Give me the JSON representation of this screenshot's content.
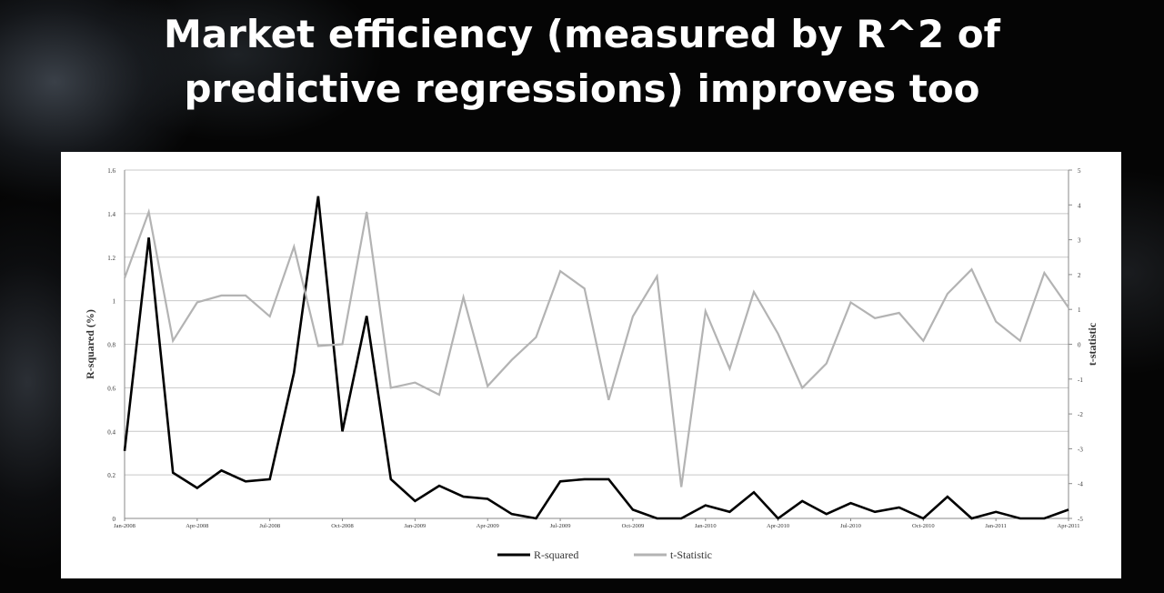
{
  "slide": {
    "title_line1": "Market efficiency (measured by R^2 of",
    "title_line2": "predictive regressions) improves too"
  },
  "chart_data": {
    "type": "line",
    "xlabel": "",
    "ylabel": "R-squared (%)",
    "y2label": "t-statistic",
    "ylim": [
      0,
      1.6
    ],
    "y2lim": [
      -5,
      5
    ],
    "y_ticks": [
      "0",
      "0.2",
      "0.4",
      "0.6",
      "0.8",
      "1",
      "1.2",
      "1.4",
      "1.6"
    ],
    "y2_ticks": [
      "-5",
      "-4",
      "-3",
      "-2",
      "-1",
      "0",
      "1",
      "2",
      "3",
      "4",
      "5"
    ],
    "x_tick_labels": [
      "Jan-2008",
      "Apr-2008",
      "Jul-2008",
      "Oct-2008",
      "Jan-2009",
      "Apr-2009",
      "Jul-2009",
      "Oct-2009",
      "Jan-2010",
      "Apr-2010",
      "Jul-2010",
      "Oct-2010",
      "Jan-2011",
      "Apr-2011"
    ],
    "x": [
      "Jan-2008",
      "Feb-2008",
      "Mar-2008",
      "Apr-2008",
      "May-2008",
      "Jun-2008",
      "Jul-2008",
      "Aug-2008",
      "Sep-2008",
      "Oct-2008",
      "Nov-2008",
      "Dec-2008",
      "Jan-2009",
      "Feb-2009",
      "Mar-2009",
      "Apr-2009",
      "May-2009",
      "Jun-2009",
      "Jul-2009",
      "Aug-2009",
      "Sep-2009",
      "Oct-2009",
      "Nov-2009",
      "Dec-2009",
      "Jan-2010",
      "Feb-2010",
      "Mar-2010",
      "Apr-2010",
      "May-2010",
      "Jun-2010",
      "Jul-2010",
      "Aug-2010",
      "Sep-2010",
      "Oct-2010",
      "Nov-2010",
      "Dec-2010",
      "Jan-2011",
      "Feb-2011",
      "Mar-2011",
      "Apr-2011"
    ],
    "series": [
      {
        "name": "R-squared",
        "axis": "left",
        "color": "#000000",
        "values": [
          0.31,
          1.29,
          0.21,
          0.14,
          0.22,
          0.17,
          0.18,
          0.67,
          1.48,
          0.4,
          0.93,
          0.18,
          0.08,
          0.15,
          0.1,
          0.09,
          0.02,
          0.0,
          0.17,
          0.18,
          0.18,
          0.04,
          0.0,
          0.0,
          0.06,
          0.03,
          0.12,
          0.0,
          0.08,
          0.02,
          0.07,
          0.03,
          0.05,
          0.0,
          0.1,
          0.0,
          0.03,
          0.0,
          0.0,
          0.04
        ]
      },
      {
        "name": "t-Statistic",
        "axis": "right",
        "color": "#b3b3b3",
        "values": [
          1.9,
          3.8,
          0.1,
          1.2,
          1.4,
          1.4,
          0.8,
          2.8,
          -0.05,
          0.0,
          3.8,
          -1.25,
          -1.1,
          -1.45,
          1.35,
          -1.2,
          -0.45,
          0.2,
          2.1,
          1.6,
          -1.6,
          0.8,
          1.95,
          -4.1,
          0.95,
          -0.7,
          1.5,
          0.3,
          -1.25,
          -0.55,
          1.2,
          0.75,
          0.9,
          0.1,
          1.45,
          2.15,
          0.65,
          0.1,
          2.05,
          1.05
        ]
      }
    ],
    "legend_position": "bottom-center",
    "grid": true
  }
}
